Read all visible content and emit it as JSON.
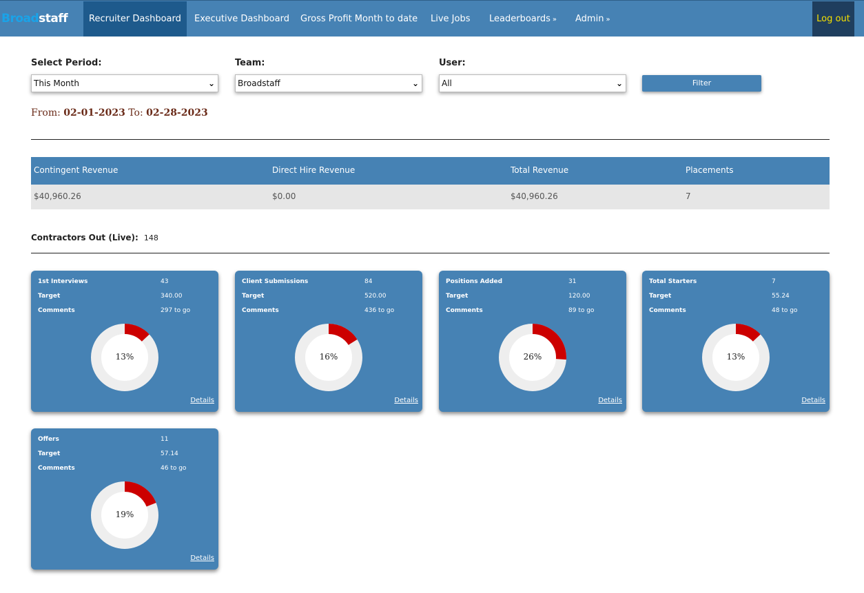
{
  "brand": {
    "left": "Broad",
    "right": "staff"
  },
  "nav": {
    "items": [
      {
        "label": "Recruiter Dashboard",
        "active": true
      },
      {
        "label": "Executive Dashboard"
      },
      {
        "label": "Gross Profit Month to date"
      },
      {
        "label": "Live Jobs"
      },
      {
        "label": "Leaderboards",
        "arrow": "»"
      },
      {
        "label": "Admin",
        "arrow": "»"
      }
    ],
    "logout": "Log out"
  },
  "filters": {
    "period_label": "Select Period:",
    "period_value": "This Month",
    "team_label": "Team:",
    "team_value": "Broadstaff",
    "user_label": "User:",
    "user_value": "All",
    "filter_button": "Filter"
  },
  "range": {
    "from_label": "From:",
    "from": "02-01-2023",
    "to_label": "To:",
    "to": "02-28-2023"
  },
  "revenue": {
    "headers": [
      "Contingent Revenue",
      "Direct Hire Revenue",
      "Total Revenue",
      "Placements"
    ],
    "values": [
      "$40,960.26",
      "$0.00",
      "$40,960.26",
      "7"
    ]
  },
  "contractors": {
    "label": "Contractors Out (Live):",
    "value": "148"
  },
  "cards": [
    {
      "title": "1st Interviews",
      "value": "43",
      "target_label": "Target",
      "target": "340.00",
      "comments_label": "Comments",
      "comments": "297 to go",
      "percent_label": "13%",
      "percent": 0.13,
      "details": "Details"
    },
    {
      "title": "Client Submissions",
      "value": "84",
      "target_label": "Target",
      "target": "520.00",
      "comments_label": "Comments",
      "comments": "436 to go",
      "percent_label": "16%",
      "percent": 0.16,
      "details": "Details"
    },
    {
      "title": "Positions Added",
      "value": "31",
      "target_label": "Target",
      "target": "120.00",
      "comments_label": "Comments",
      "comments": "89 to go",
      "percent_label": "26%",
      "percent": 0.26,
      "details": "Details"
    },
    {
      "title": "Total Starters",
      "value": "7",
      "target_label": "Target",
      "target": "55.24",
      "comments_label": "Comments",
      "comments": "48 to go",
      "percent_label": "13%",
      "percent": 0.13,
      "details": "Details"
    },
    {
      "title": "Offers",
      "value": "11",
      "target_label": "Target",
      "target": "57.14",
      "comments_label": "Comments",
      "comments": "46 to go",
      "percent_label": "19%",
      "percent": 0.19,
      "details": "Details"
    }
  ],
  "colors": {
    "primary": "#4682b4",
    "nav_active": "#1e5a8c",
    "logout_bg": "#1f3e5e",
    "logout_text": "#f5e000",
    "progress": "#cc0000",
    "track": "#eeeeee",
    "date_text": "#6b2c1a"
  }
}
